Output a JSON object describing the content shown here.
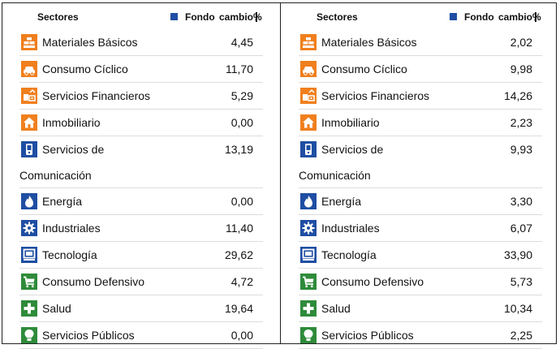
{
  "colors": {
    "orange": "#f07f1d",
    "blue": "#1f4ea3",
    "green": "#2e8b3a",
    "legend_square": "#1f4ea3"
  },
  "panels": [
    {
      "header": {
        "sectors": "Sectores",
        "fund": "Fondo",
        "change": "cambio%"
      },
      "rows": [
        {
          "icon": "materials-icon",
          "label": "Materiales Básicos",
          "value": "4,45"
        },
        {
          "icon": "car-icon",
          "label": "Consumo Cíclico",
          "value": "11,70"
        },
        {
          "icon": "bank-icon",
          "label": "Servicios Financieros",
          "value": "5,29"
        },
        {
          "icon": "house-icon",
          "label": "Inmobiliario",
          "value": "0,00"
        },
        {
          "icon": "phone-icon",
          "label": "Servicios de",
          "label_cont": "Comunicación",
          "value": "13,19"
        },
        {
          "icon": "flame-icon",
          "label": "Energía",
          "value": "0,00"
        },
        {
          "icon": "gear-icon",
          "label": "Industriales",
          "value": "11,40"
        },
        {
          "icon": "computer-icon",
          "label": "Tecnología",
          "value": "29,62"
        },
        {
          "icon": "cart-icon",
          "label": "Consumo Defensivo",
          "value": "4,72"
        },
        {
          "icon": "cross-icon",
          "label": "Salud",
          "value": "19,64"
        },
        {
          "icon": "lightbulb-icon",
          "label": "Servicios Públicos",
          "value": "0,00"
        }
      ]
    },
    {
      "header": {
        "sectors": "Sectores",
        "fund": "Fondo",
        "change": "cambio%"
      },
      "rows": [
        {
          "icon": "materials-icon",
          "label": "Materiales Básicos",
          "value": "2,02"
        },
        {
          "icon": "car-icon",
          "label": "Consumo Cíclico",
          "value": "9,98"
        },
        {
          "icon": "bank-icon",
          "label": "Servicios Financieros",
          "value": "14,26"
        },
        {
          "icon": "house-icon",
          "label": "Inmobiliario",
          "value": "2,23"
        },
        {
          "icon": "phone-icon",
          "label": "Servicios de",
          "label_cont": "Comunicación",
          "value": "9,93"
        },
        {
          "icon": "flame-icon",
          "label": "Energía",
          "value": "3,30"
        },
        {
          "icon": "gear-icon",
          "label": "Industriales",
          "value": "6,07"
        },
        {
          "icon": "computer-icon",
          "label": "Tecnología",
          "value": "33,90"
        },
        {
          "icon": "cart-icon",
          "label": "Consumo Defensivo",
          "value": "5,73"
        },
        {
          "icon": "cross-icon",
          "label": "Salud",
          "value": "10,34"
        },
        {
          "icon": "lightbulb-icon",
          "label": "Servicios Públicos",
          "value": "2,25"
        }
      ]
    }
  ]
}
